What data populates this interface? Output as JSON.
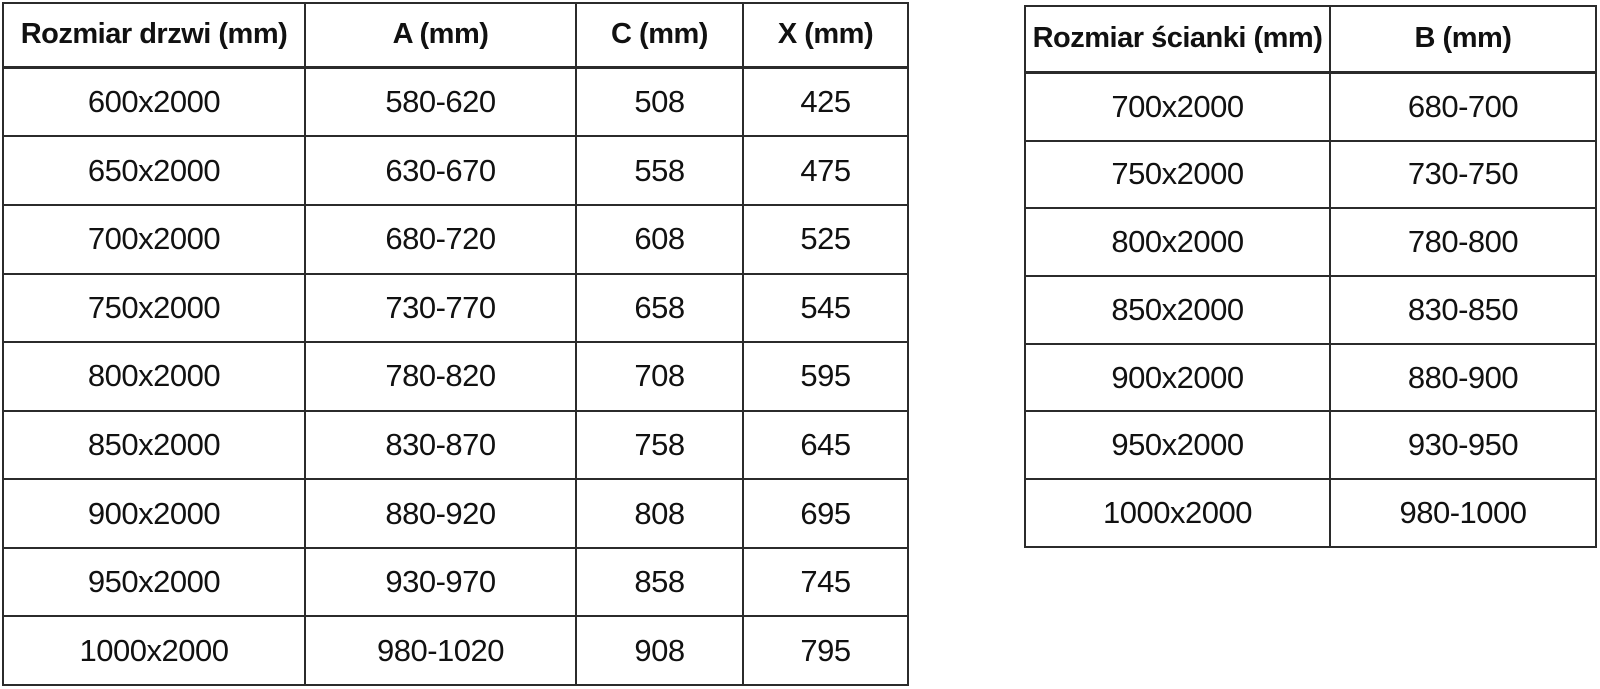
{
  "door_table": {
    "headers": [
      "Rozmiar drzwi (mm)",
      "A (mm)",
      "C (mm)",
      "X (mm)"
    ],
    "rows": [
      [
        "600x2000",
        "580-620",
        "508",
        "425"
      ],
      [
        "650x2000",
        "630-670",
        "558",
        "475"
      ],
      [
        "700x2000",
        "680-720",
        "608",
        "525"
      ],
      [
        "750x2000",
        "730-770",
        "658",
        "545"
      ],
      [
        "800x2000",
        "780-820",
        "708",
        "595"
      ],
      [
        "850x2000",
        "830-870",
        "758",
        "645"
      ],
      [
        "900x2000",
        "880-920",
        "808",
        "695"
      ],
      [
        "950x2000",
        "930-970",
        "858",
        "745"
      ],
      [
        "1000x2000",
        "980-1020",
        "908",
        "795"
      ]
    ]
  },
  "wall_table": {
    "headers": [
      "Rozmiar ścianki (mm)",
      "B (mm)"
    ],
    "rows": [
      [
        "700x2000",
        "680-700"
      ],
      [
        "750x2000",
        "730-750"
      ],
      [
        "800x2000",
        "780-800"
      ],
      [
        "850x2000",
        "830-850"
      ],
      [
        "900x2000",
        "880-900"
      ],
      [
        "950x2000",
        "930-950"
      ],
      [
        "1000x2000",
        "980-1000"
      ]
    ]
  },
  "colors": {
    "background": "#ffffff",
    "text": "#111111",
    "border": "#2b2b2b"
  }
}
